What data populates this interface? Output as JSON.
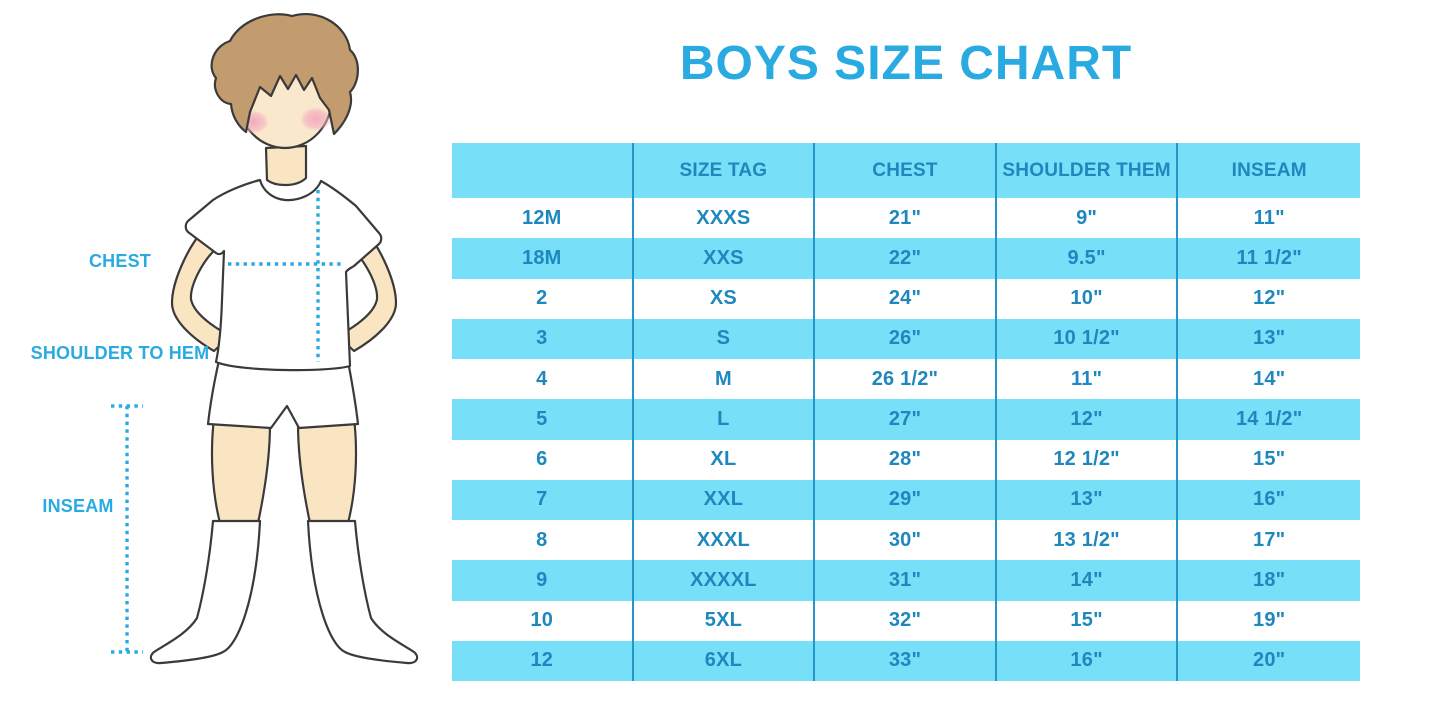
{
  "title": "BOYS SIZE CHART",
  "figure": {
    "labels": {
      "chest": "CHEST",
      "shoulder_to_hem": "SHOULDER TO HEM",
      "inseam": "INSEAM"
    },
    "illustration": "boy in white t-shirt, shorts and knee socks with dotted measurement guides"
  },
  "colors": {
    "accent_blue": "#29ABE2",
    "stripe_cyan": "#77DFF8",
    "table_text_blue": "#1E88BE",
    "table_line_blue": "#2696C8",
    "hair_brown": "#C29B6E",
    "skin": "#F9E5C1",
    "blush_pink": "#F2A9BD"
  },
  "chart_data": {
    "type": "table",
    "title": "BOYS SIZE CHART",
    "columns": [
      "",
      "SIZE TAG",
      "CHEST",
      "SHOULDER THEM",
      "INSEAM"
    ],
    "rows": [
      [
        "12M",
        "XXXS",
        "21\"",
        "9\"",
        "11\""
      ],
      [
        "18M",
        "XXS",
        "22\"",
        "9.5\"",
        "11 1/2\""
      ],
      [
        "2",
        "XS",
        "24\"",
        "10\"",
        "12\""
      ],
      [
        "3",
        "S",
        "26\"",
        "10 1/2\"",
        "13\""
      ],
      [
        "4",
        "M",
        "26 1/2\"",
        "11\"",
        "14\""
      ],
      [
        "5",
        "L",
        "27\"",
        "12\"",
        "14 1/2\""
      ],
      [
        "6",
        "XL",
        "28\"",
        "12 1/2\"",
        "15\""
      ],
      [
        "7",
        "XXL",
        "29\"",
        "13\"",
        "16\""
      ],
      [
        "8",
        "XXXL",
        "30\"",
        "13 1/2\"",
        "17\""
      ],
      [
        "9",
        "XXXXL",
        "31\"",
        "14\"",
        "18\""
      ],
      [
        "10",
        "5XL",
        "32\"",
        "15\"",
        "19\""
      ],
      [
        "12",
        "6XL",
        "33\"",
        "16\"",
        "20\""
      ]
    ],
    "stripe_pattern": "header cyan, body rows alternate white/cyan starting white",
    "grid": "vertical separators only, no outer border"
  }
}
